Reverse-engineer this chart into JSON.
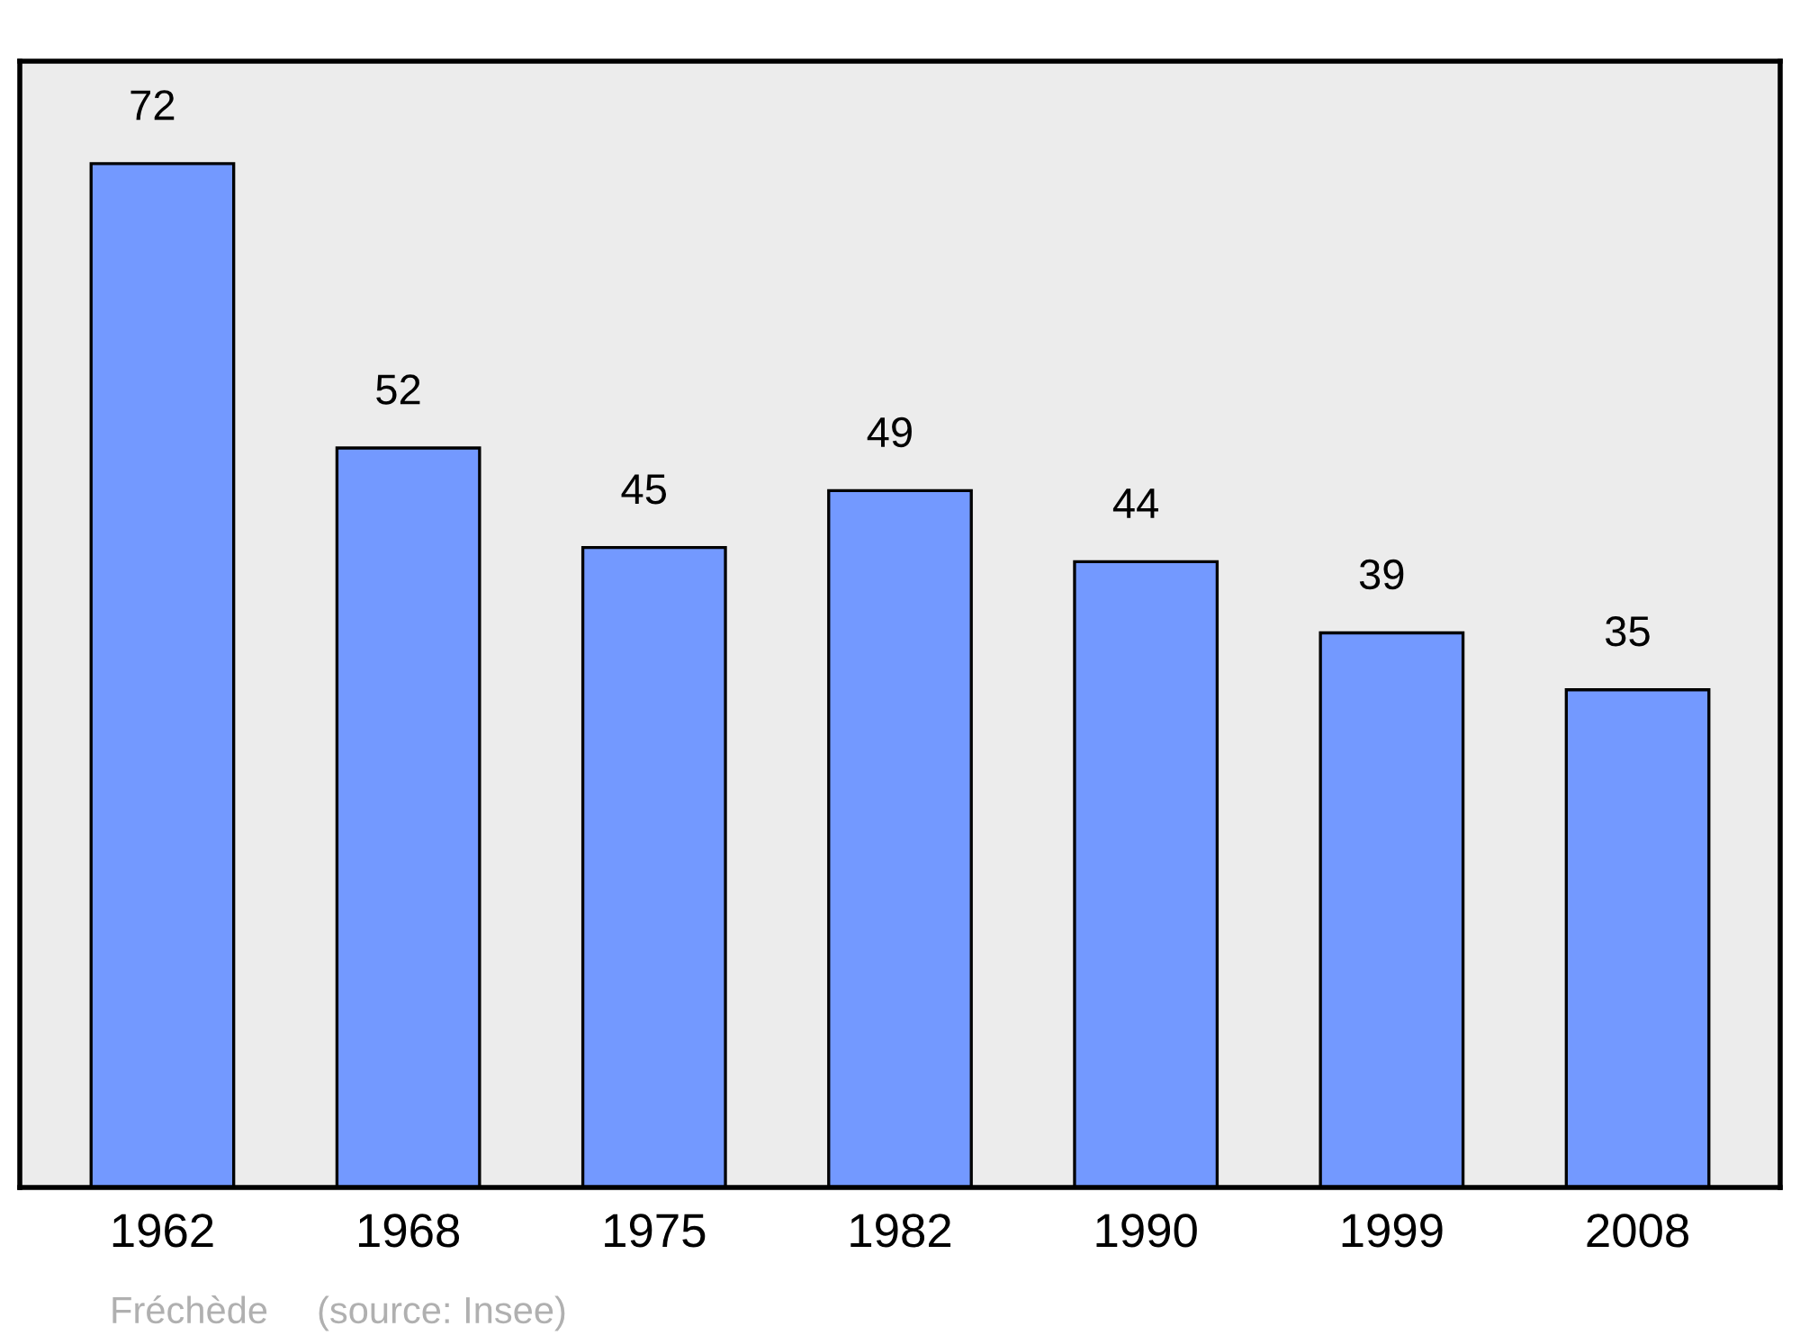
{
  "chart_data": {
    "type": "bar",
    "categories": [
      "1962",
      "1968",
      "1975",
      "1982",
      "1990",
      "1999",
      "2008"
    ],
    "values": [
      72,
      52,
      45,
      49,
      44,
      39,
      35
    ],
    "color": "#7399ff",
    "data_labels": true,
    "grid": false,
    "legend": false,
    "annotations": [
      "Fréchède",
      "(source: Insee)"
    ]
  }
}
